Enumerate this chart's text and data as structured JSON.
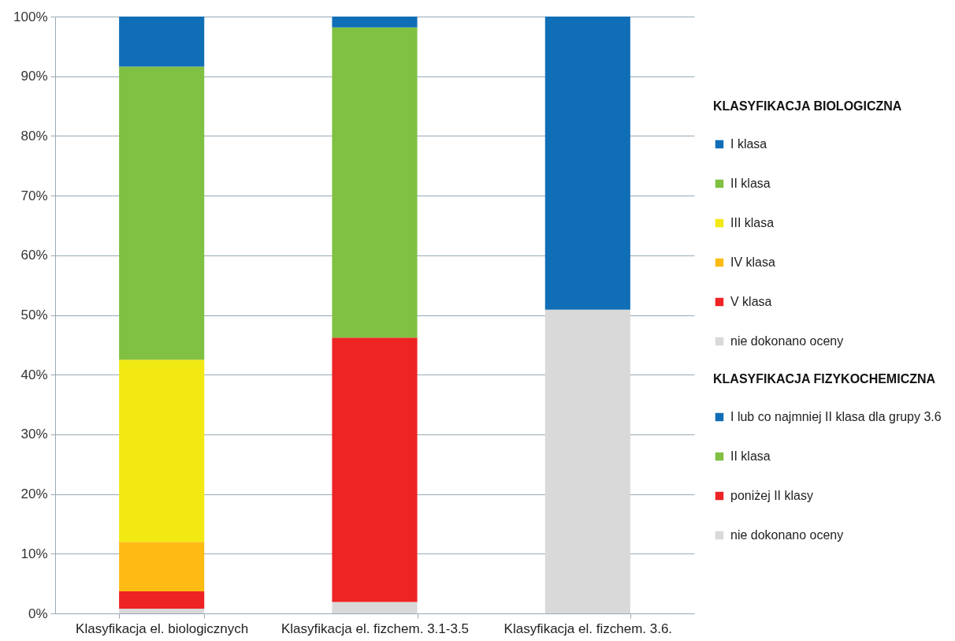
{
  "chart_data": {
    "type": "bar",
    "stacked": true,
    "categories": [
      "Klasyfikacja el. biologicznych",
      "Klasyfikacja el. fizchem. 3.1-3.5",
      "Klasyfikacja el. fizchem. 3.6."
    ],
    "legend_title": [
      "KLASYFIKACJA BIOLOGICZNA",
      "KLASYFIKACJA FIZYKOCHEMICZNA"
    ],
    "series": [
      {
        "name": "nie dokonano oceny",
        "color": "#d9d9d9",
        "values": [
          0.8,
          null,
          null
        ]
      },
      {
        "name": "V klasa",
        "color": "#ee2324",
        "values": [
          2.9,
          null,
          null
        ]
      },
      {
        "name": "IV klasa",
        "color": "#fdbb14",
        "values": [
          8.3,
          null,
          null
        ]
      },
      {
        "name": "III klasa",
        "color": "#f2e912",
        "values": [
          30.5,
          null,
          null
        ]
      },
      {
        "name": "II klasa",
        "color": "#80c042",
        "values": [
          49.1,
          null,
          null
        ]
      },
      {
        "name": "I klasa",
        "color": "#106eb6",
        "values": [
          8.4,
          null,
          null
        ]
      },
      {
        "name": "nie dokonano oceny",
        "color": "#d9d9d9",
        "values": [
          null,
          1.9,
          50.9
        ]
      },
      {
        "name": "poniżej II klasy",
        "color": "#ee2324",
        "values": [
          null,
          44.3,
          null
        ]
      },
      {
        "name": "II klasa",
        "color": "#80c042",
        "values": [
          null,
          52.0,
          null
        ]
      },
      {
        "name": "I lub co najmniej II klasa dla grupy 3.6",
        "color": "#106eb6",
        "values": [
          null,
          1.8,
          49.1
        ]
      }
    ],
    "ylim": [
      0,
      100
    ],
    "yticks": [
      {
        "value": 0,
        "label": "0%"
      },
      {
        "value": 10,
        "label": "10%"
      },
      {
        "value": 20,
        "label": "20%"
      },
      {
        "value": 30,
        "label": "30%"
      },
      {
        "value": 40,
        "label": "40%"
      },
      {
        "value": 50,
        "label": "50%"
      },
      {
        "value": 60,
        "label": "60%"
      },
      {
        "value": 70,
        "label": "70%"
      },
      {
        "value": 80,
        "label": "80%"
      },
      {
        "value": 90,
        "label": "90%"
      },
      {
        "value": 100,
        "label": "100%"
      }
    ],
    "grid": "y",
    "legend": "right"
  }
}
